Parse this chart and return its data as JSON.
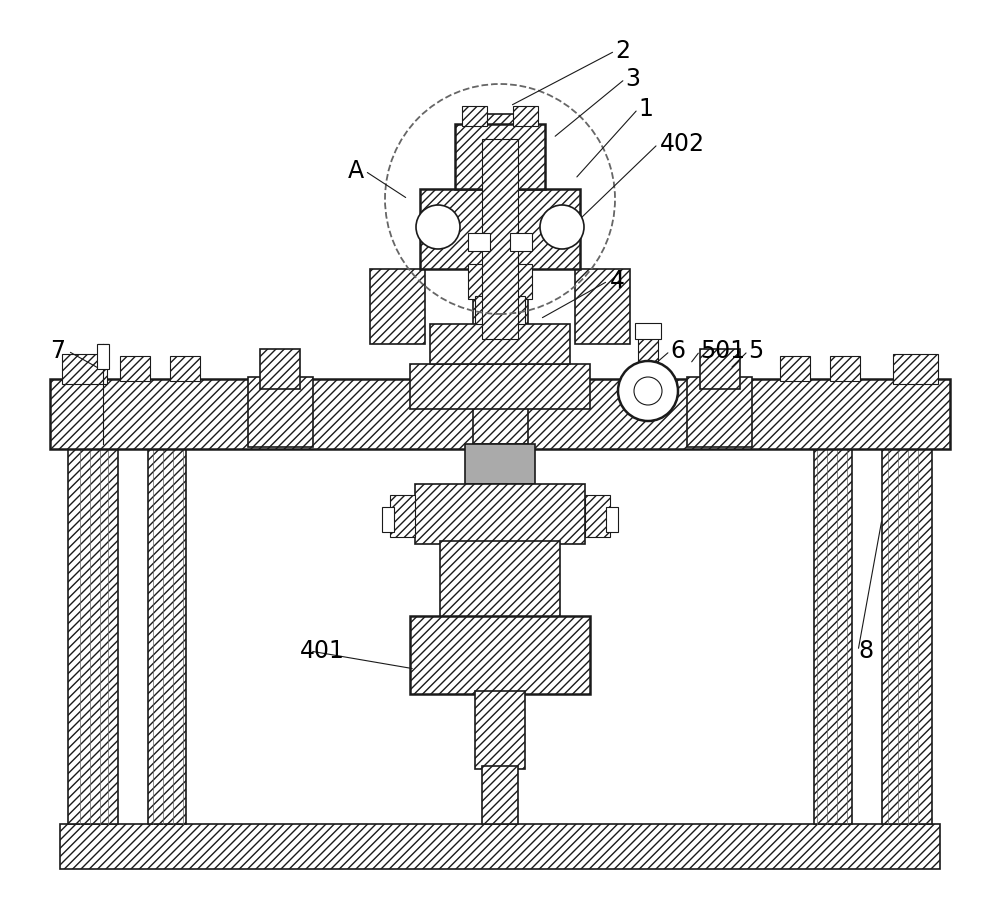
{
  "bg_color": "#ffffff",
  "line_color": "#1a1a1a",
  "label_color": "#000000",
  "font_size": 17,
  "figure_width": 10.0,
  "figure_height": 8.99
}
